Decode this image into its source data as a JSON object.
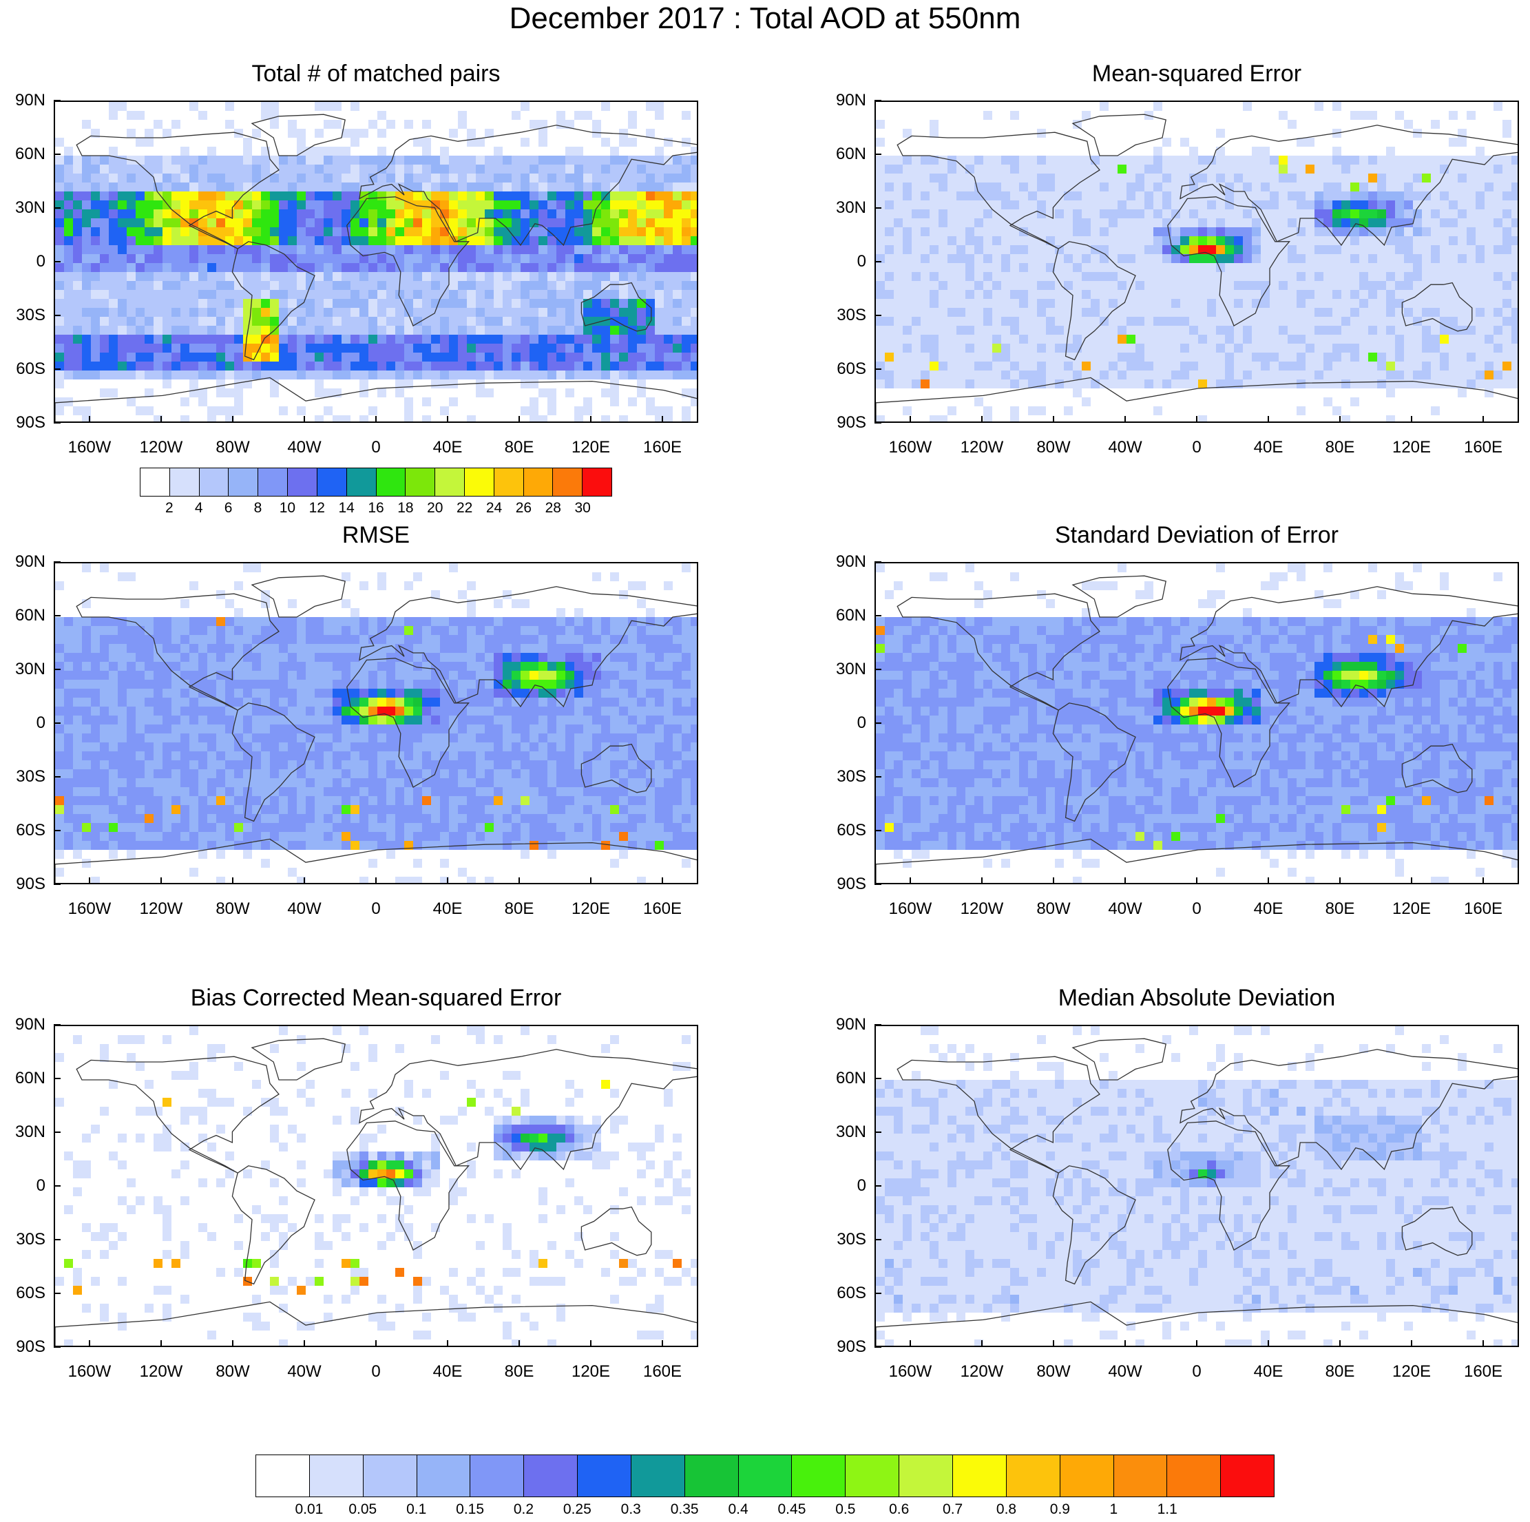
{
  "main_title": "December 2017 : Total AOD at 550nm",
  "lat_labels": [
    "90N",
    "60N",
    "30N",
    "0",
    "30S",
    "60S",
    "90S"
  ],
  "lon_labels": [
    "160W",
    "120W",
    "80W",
    "40W",
    "0",
    "40E",
    "80E",
    "120E",
    "160E"
  ],
  "colors": {
    "counts": [
      "#ffffff",
      "#d6e0fc",
      "#b4c7fb",
      "#96b4f8",
      "#8097f7",
      "#6d70ef",
      "#1f63f4",
      "#11999a",
      "#2fe60f",
      "#7ce70a",
      "#c4f63a",
      "#fbfb07",
      "#fdc30c",
      "#fea906",
      "#fb7a0a",
      "#fb0d0d"
    ],
    "errors": [
      "#ffffff",
      "#d6e0fc",
      "#b4c7fb",
      "#96b4f8",
      "#8097f7",
      "#6d70ef",
      "#1f63f4",
      "#11999a",
      "#17c436",
      "#1cd43a",
      "#48f10c",
      "#8ef514",
      "#c4f63a",
      "#fbfb07",
      "#fdc30c",
      "#fea906",
      "#fb8e0c",
      "#fb7a0a",
      "#fb0d0d"
    ]
  },
  "panels": [
    {
      "title": "Total # of matched pairs",
      "scale": "counts"
    },
    {
      "title": "Mean-squared Error",
      "scale": "errors"
    },
    {
      "title": "RMSE",
      "scale": "errors"
    },
    {
      "title": "Standard Deviation of Error",
      "scale": "errors"
    },
    {
      "title": "Bias Corrected Mean-squared Error",
      "scale": "errors"
    },
    {
      "title": "Median Absolute Deviation",
      "scale": "errors"
    }
  ],
  "colorbar_counts": {
    "labels": [
      "2",
      "4",
      "6",
      "8",
      "10",
      "12",
      "14",
      "16",
      "18",
      "20",
      "22",
      "24",
      "26",
      "28",
      "30"
    ]
  },
  "colorbar_errors": {
    "labels": [
      "0.01",
      "0.05",
      "0.1",
      "0.15",
      "0.2",
      "0.25",
      "0.3",
      "0.35",
      "0.4",
      "0.45",
      "0.5",
      "0.6",
      "0.7",
      "0.8",
      "0.9",
      "1",
      "1.1"
    ]
  }
}
